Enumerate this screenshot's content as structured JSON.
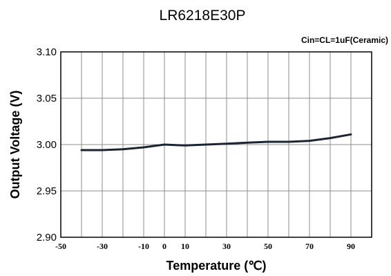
{
  "chart_data": {
    "type": "line",
    "title": "LR6218E30P",
    "annotation": "Cin=CL=1uF(Ceramic)",
    "xlabel": "Temperature (℃)",
    "ylabel": "Output Voltage (V)",
    "xlim": [
      -50,
      100
    ],
    "ylim": [
      2.9,
      3.1
    ],
    "xticks": [
      -50,
      -30,
      -10,
      0,
      10,
      30,
      50,
      70,
      90
    ],
    "xtick_labels": [
      "-50",
      "-30",
      "-10",
      "0",
      "10",
      "30",
      "50",
      "70",
      "90"
    ],
    "yticks": [
      2.9,
      2.95,
      3.0,
      3.05,
      3.1
    ],
    "ytick_labels": [
      "2.90",
      "2.95",
      "3.00",
      "3.05",
      "3.10"
    ],
    "grid_x": [
      -50,
      -40,
      -30,
      -20,
      -10,
      0,
      10,
      20,
      30,
      40,
      50,
      60,
      70,
      80,
      90,
      100
    ],
    "grid_y": [
      2.9,
      2.95,
      3.0,
      3.05,
      3.1
    ],
    "grid": true,
    "series": [
      {
        "color": "#1b2433",
        "x": [
          -40,
          -30,
          -20,
          -10,
          0,
          10,
          20,
          30,
          40,
          50,
          60,
          70,
          80,
          90
        ],
        "y": [
          2.994,
          2.994,
          2.995,
          2.997,
          3.0,
          2.999,
          3.0,
          3.001,
          3.002,
          3.003,
          3.003,
          3.004,
          3.007,
          3.011
        ]
      }
    ]
  }
}
